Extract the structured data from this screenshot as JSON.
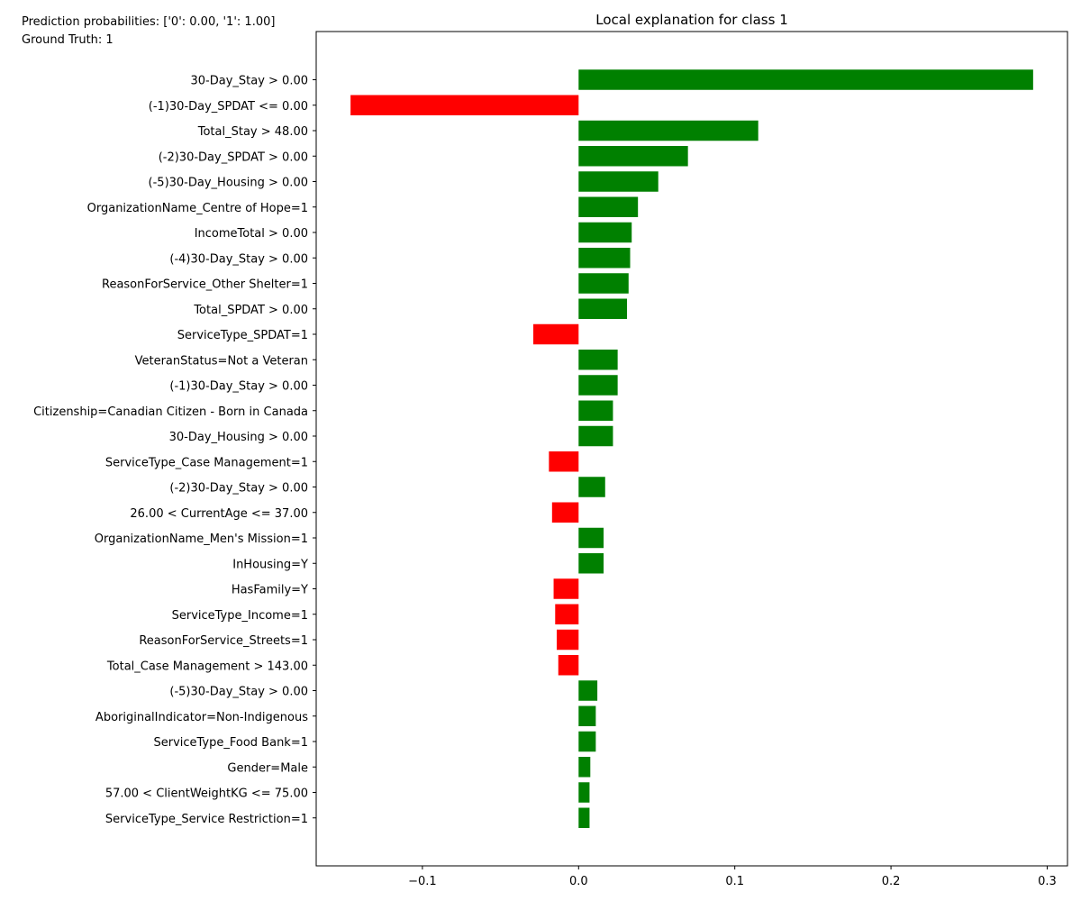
{
  "header": {
    "prediction_probabilities": "Prediction probabilities: ['0': 0.00, '1': 1.00]",
    "ground_truth": "Ground Truth: 1"
  },
  "colors": {
    "positive": "#008000",
    "negative": "#ff0000"
  },
  "chart_data": {
    "type": "bar",
    "orientation": "horizontal",
    "title": "Local explanation for class 1",
    "xlabel": "",
    "ylabel": "",
    "xlim": [
      -0.168,
      0.313
    ],
    "xticks": [
      -0.1,
      0.0,
      0.1,
      0.2,
      0.3
    ],
    "xtick_labels": [
      "−0.1",
      "0.0",
      "0.1",
      "0.2",
      "0.3"
    ],
    "grid": false,
    "categories": [
      "30-Day_Stay > 0.00",
      "(-1)30-Day_SPDAT <= 0.00",
      "Total_Stay > 48.00",
      "(-2)30-Day_SPDAT > 0.00",
      "(-5)30-Day_Housing > 0.00",
      "OrganizationName_Centre of Hope=1",
      "IncomeTotal > 0.00",
      "(-4)30-Day_Stay > 0.00",
      "ReasonForService_Other Shelter=1",
      "Total_SPDAT > 0.00",
      "ServiceType_SPDAT=1",
      "VeteranStatus=Not a Veteran",
      "(-1)30-Day_Stay > 0.00",
      "Citizenship=Canadian Citizen - Born in Canada",
      "30-Day_Housing > 0.00",
      "ServiceType_Case Management=1",
      "(-2)30-Day_Stay > 0.00",
      "26.00 < CurrentAge <= 37.00",
      "OrganizationName_Men's Mission=1",
      "InHousing=Y",
      "HasFamily=Y",
      "ServiceType_Income=1",
      "ReasonForService_Streets=1",
      "Total_Case Management > 143.00",
      "(-5)30-Day_Stay > 0.00",
      "AboriginalIndicator=Non-Indigenous",
      "ServiceType_Food Bank=1",
      "Gender=Male",
      "57.00 < ClientWeightKG <= 75.00",
      "ServiceType_Service Restriction=1"
    ],
    "values": [
      0.291,
      -0.146,
      0.115,
      0.07,
      0.051,
      0.038,
      0.034,
      0.033,
      0.032,
      0.031,
      -0.029,
      0.025,
      0.025,
      0.022,
      0.022,
      -0.019,
      0.017,
      -0.017,
      0.016,
      0.016,
      -0.016,
      -0.015,
      -0.014,
      -0.013,
      0.012,
      0.011,
      0.011,
      0.0075,
      0.007,
      0.007
    ]
  }
}
